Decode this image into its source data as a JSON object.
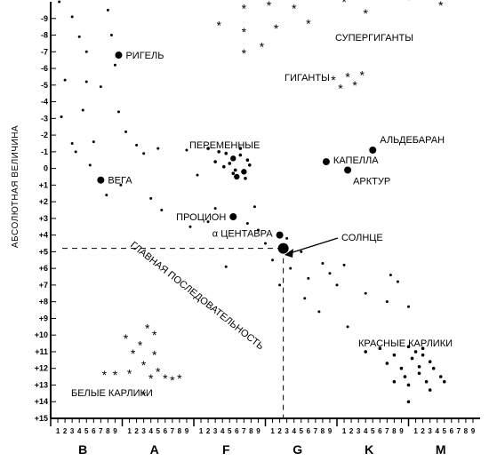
{
  "chart_data": {
    "type": "scatter",
    "ylabel": "АБСОЛЮТНАЯ ВЕЛИЧИНА",
    "x_axis": {
      "classes": [
        "B",
        "A",
        "F",
        "G",
        "K",
        "M"
      ],
      "subclasses": [
        "1",
        "2",
        "3",
        "4",
        "5",
        "6",
        "7",
        "8",
        "9"
      ],
      "range": [
        0,
        6
      ]
    },
    "y_axis": {
      "ticks": [
        "-9",
        "-8",
        "-7",
        "-6",
        "-5",
        "-4",
        "-3",
        "-2",
        "-1",
        "0",
        "+1",
        "+2",
        "+3",
        "+4",
        "+5",
        "+6",
        "+7",
        "+8",
        "+9",
        "+10",
        "+11",
        "+12",
        "+13",
        "+14",
        "+15"
      ],
      "range": [
        -10,
        15
      ],
      "inverted": true
    },
    "labels": {
      "supergiants": "СУПЕРГИГАНТЫ",
      "giants": "ГИГАНТЫ",
      "variables": "ПЕРЕМЕННЫЕ",
      "main_sequence": "ГЛАВНАЯ ПОСЛЕДОВАТЕЛЬНОСТЬ",
      "red_dwarfs": "КРАСНЫЕ КАРЛИКИ",
      "white_dwarfs": "БЕЛЫЕ КАРЛИКИ",
      "sun": "СОЛНЦЕ"
    },
    "named_stars": [
      {
        "name": "РИГЕЛЬ",
        "x": 0.95,
        "y": -6.8
      },
      {
        "name": "ВЕГА",
        "x": 0.7,
        "y": 0.7
      },
      {
        "name": "ПРОЦИОН",
        "x": 2.55,
        "y": 2.9
      },
      {
        "name": "α ЦЕНТАВРА",
        "x": 3.2,
        "y": 4.0
      },
      {
        "name": "АЛЬДЕБАРАН",
        "x": 4.5,
        "y": -1.1
      },
      {
        "name": "КАПЕЛЛА",
        "x": 3.85,
        "y": -0.4
      },
      {
        "name": "АРКТУР",
        "x": 4.15,
        "y": 0.1
      }
    ],
    "sun": {
      "x": 3.25,
      "y": 4.8
    },
    "variable_stars": [
      {
        "x": 2.55,
        "y": -0.6
      },
      {
        "x": 2.6,
        "y": 0.5
      },
      {
        "x": 2.7,
        "y": 0.2
      },
      {
        "x": 2.35,
        "y": -1.0
      },
      {
        "x": 2.45,
        "y": -0.9
      },
      {
        "x": 2.5,
        "y": -0.3
      },
      {
        "x": 2.65,
        "y": -1.2
      },
      {
        "x": 2.75,
        "y": -0.5
      },
      {
        "x": 2.78,
        "y": -0.2
      },
      {
        "x": 2.58,
        "y": 0.1
      },
      {
        "x": 2.72,
        "y": 0.6
      },
      {
        "x": 2.3,
        "y": -0.4
      },
      {
        "x": 2.42,
        "y": -0.1
      },
      {
        "x": 2.2,
        "y": -1.2
      },
      {
        "x": 2.65,
        "y": -0.8
      },
      {
        "x": 2.55,
        "y": 0.3
      }
    ],
    "supergiants": [
      {
        "x": 2.35,
        "y": -8.6
      },
      {
        "x": 2.7,
        "y": -9.6
      },
      {
        "x": 3.05,
        "y": -9.8
      },
      {
        "x": 3.4,
        "y": -9.6
      },
      {
        "x": 2.7,
        "y": -8.2
      },
      {
        "x": 3.15,
        "y": -8.4
      },
      {
        "x": 3.6,
        "y": -8.7
      },
      {
        "x": 4.1,
        "y": -10.0
      },
      {
        "x": 4.45,
        "y": -10.2
      },
      {
        "x": 4.7,
        "y": -10.2
      },
      {
        "x": 5.0,
        "y": -10.1
      },
      {
        "x": 5.45,
        "y": -9.8
      },
      {
        "x": 4.4,
        "y": -9.3
      },
      {
        "x": 2.95,
        "y": -7.3
      },
      {
        "x": 2.7,
        "y": -6.9
      }
    ],
    "giants": [
      {
        "x": 3.95,
        "y": -5.3
      },
      {
        "x": 4.15,
        "y": -5.5
      },
      {
        "x": 4.35,
        "y": -5.6
      },
      {
        "x": 4.05,
        "y": -4.8
      },
      {
        "x": 4.25,
        "y": -5.0
      }
    ],
    "main_sequence": [
      {
        "x": 0.12,
        "y": -10.0
      },
      {
        "x": 0.3,
        "y": -9.1
      },
      {
        "x": 0.4,
        "y": -7.9
      },
      {
        "x": 0.5,
        "y": -7.0
      },
      {
        "x": 0.2,
        "y": -5.3
      },
      {
        "x": 0.5,
        "y": -5.2
      },
      {
        "x": 0.8,
        "y": -9.5
      },
      {
        "x": 0.85,
        "y": -8.0
      },
      {
        "x": 0.9,
        "y": -6.2
      },
      {
        "x": 0.7,
        "y": -4.9
      },
      {
        "x": 0.45,
        "y": -3.5
      },
      {
        "x": 0.15,
        "y": -3.1
      },
      {
        "x": 0.95,
        "y": -3.4
      },
      {
        "x": 0.3,
        "y": -1.5
      },
      {
        "x": 0.6,
        "y": -1.6
      },
      {
        "x": 1.05,
        "y": -2.2
      },
      {
        "x": 1.2,
        "y": -1.4
      },
      {
        "x": 0.35,
        "y": -1.0
      },
      {
        "x": 0.55,
        "y": -0.2
      },
      {
        "x": 1.3,
        "y": -0.9
      },
      {
        "x": 0.78,
        "y": 1.6
      },
      {
        "x": 0.98,
        "y": 1.0
      },
      {
        "x": 1.4,
        "y": 1.8
      },
      {
        "x": 1.55,
        "y": 2.5
      },
      {
        "x": 1.5,
        "y": -1.2
      },
      {
        "x": 1.9,
        "y": -1.1
      },
      {
        "x": 2.05,
        "y": 0.4
      },
      {
        "x": 1.95,
        "y": 3.5
      },
      {
        "x": 2.2,
        "y": 3.2
      },
      {
        "x": 2.3,
        "y": 2.4
      },
      {
        "x": 2.75,
        "y": 3.3
      },
      {
        "x": 2.9,
        "y": 3.7
      },
      {
        "x": 2.85,
        "y": 2.3
      },
      {
        "x": 3.0,
        "y": 4.5
      },
      {
        "x": 3.1,
        "y": 5.5
      },
      {
        "x": 3.3,
        "y": 4.2
      },
      {
        "x": 3.5,
        "y": 5.0
      },
      {
        "x": 3.6,
        "y": 6.6
      },
      {
        "x": 3.8,
        "y": 5.7
      },
      {
        "x": 3.9,
        "y": 6.3
      },
      {
        "x": 3.75,
        "y": 8.6
      },
      {
        "x": 4.0,
        "y": 7.0
      },
      {
        "x": 4.1,
        "y": 5.8
      },
      {
        "x": 4.15,
        "y": 9.5
      },
      {
        "x": 4.4,
        "y": 7.5
      },
      {
        "x": 4.7,
        "y": 8.0
      },
      {
        "x": 4.75,
        "y": 6.4
      },
      {
        "x": 4.85,
        "y": 6.8
      },
      {
        "x": 2.45,
        "y": 5.9
      },
      {
        "x": 3.2,
        "y": 7.0
      },
      {
        "x": 3.35,
        "y": 6.0
      },
      {
        "x": 3.55,
        "y": 7.8
      },
      {
        "x": 5.0,
        "y": 8.3
      }
    ],
    "red_dwarfs": [
      {
        "x": 4.4,
        "y": 11.0
      },
      {
        "x": 4.6,
        "y": 10.8
      },
      {
        "x": 4.8,
        "y": 11.2
      },
      {
        "x": 5.0,
        "y": 10.7
      },
      {
        "x": 5.1,
        "y": 11.0
      },
      {
        "x": 5.2,
        "y": 10.8
      },
      {
        "x": 4.7,
        "y": 11.7
      },
      {
        "x": 4.9,
        "y": 12.0
      },
      {
        "x": 5.05,
        "y": 11.4
      },
      {
        "x": 5.2,
        "y": 11.2
      },
      {
        "x": 5.3,
        "y": 11.6
      },
      {
        "x": 4.95,
        "y": 12.5
      },
      {
        "x": 5.15,
        "y": 12.3
      },
      {
        "x": 5.35,
        "y": 12.0
      },
      {
        "x": 5.45,
        "y": 12.5
      },
      {
        "x": 5.0,
        "y": 13.0
      },
      {
        "x": 5.25,
        "y": 12.8
      },
      {
        "x": 5.5,
        "y": 12.8
      },
      {
        "x": 5.3,
        "y": 13.3
      },
      {
        "x": 4.8,
        "y": 12.8
      },
      {
        "x": 5.0,
        "y": 14.0
      },
      {
        "x": 5.15,
        "y": 11.9
      }
    ],
    "white_dwarfs": [
      {
        "x": 1.05,
        "y": 10.2
      },
      {
        "x": 1.35,
        "y": 9.6
      },
      {
        "x": 1.45,
        "y": 10.0
      },
      {
        "x": 1.25,
        "y": 10.6
      },
      {
        "x": 1.15,
        "y": 11.1
      },
      {
        "x": 1.45,
        "y": 11.2
      },
      {
        "x": 1.3,
        "y": 11.8
      },
      {
        "x": 1.5,
        "y": 12.2
      },
      {
        "x": 1.1,
        "y": 12.3
      },
      {
        "x": 1.4,
        "y": 12.6
      },
      {
        "x": 0.75,
        "y": 12.4
      },
      {
        "x": 0.9,
        "y": 12.4
      },
      {
        "x": 1.6,
        "y": 12.6
      },
      {
        "x": 1.7,
        "y": 12.7
      },
      {
        "x": 1.8,
        "y": 12.6
      },
      {
        "x": 1.3,
        "y": 13.6
      }
    ]
  }
}
